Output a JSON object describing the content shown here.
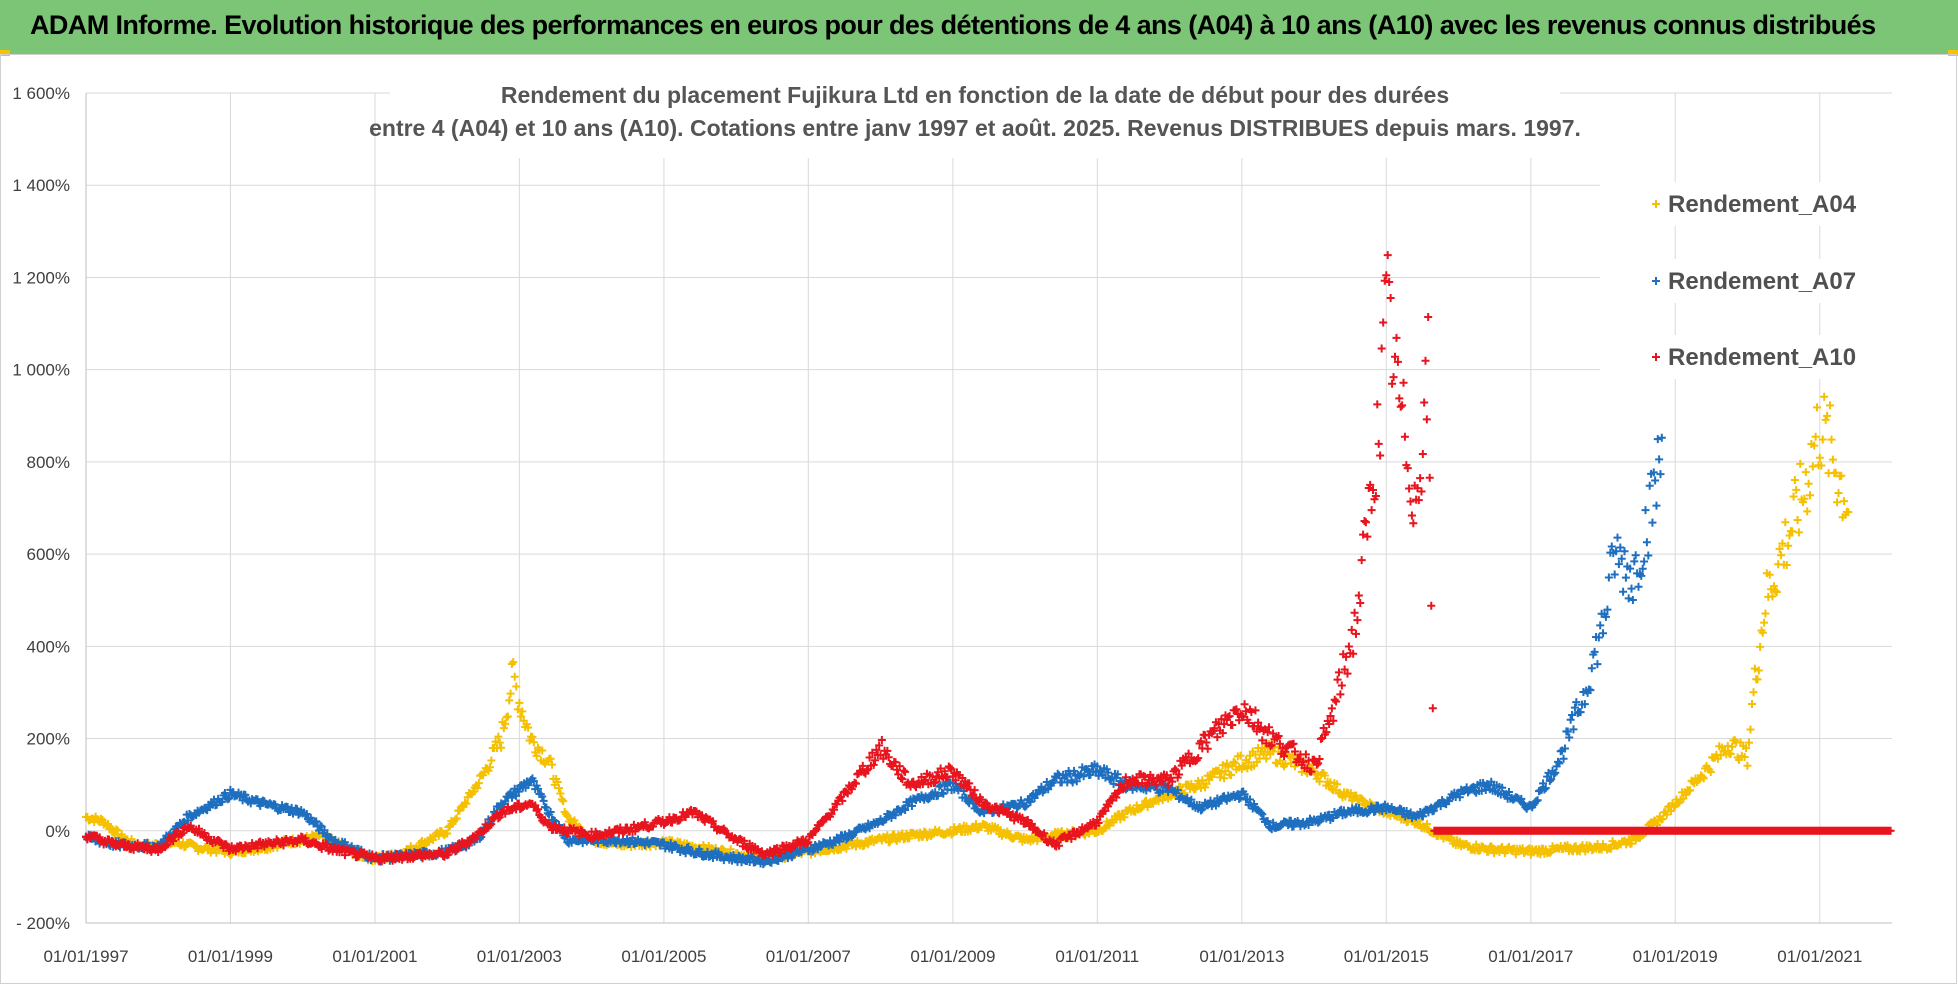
{
  "banner": {
    "title": "ADAM Informe. Evolution historique des performances en euros pour des détentions de 4 ans (A04) à 10 ans (A10) avec les revenus connus distribués",
    "background": "#7cc576"
  },
  "chart_data": {
    "type": "scatter",
    "title_lines": [
      "Rendement du placement Fujikura Ltd en fonction de la date de début pour des durées",
      "entre 4 (A04) et 10 ans (A10). Cotations entre janv 1997 et août. 2025. Revenus DISTRIBUES depuis mars. 1997."
    ],
    "xlabel": "",
    "ylabel": "",
    "x_range": [
      "1997-01-01",
      "2022-01-01"
    ],
    "ylim": [
      -200,
      1600
    ],
    "y_ticks": [
      -200,
      0,
      200,
      400,
      600,
      800,
      1000,
      1200,
      1400,
      1600
    ],
    "y_tick_labels": [
      "- 200%",
      "0%",
      "200%",
      "400%",
      "600%",
      "800%",
      "1 000%",
      "1 200%",
      "1 400%",
      "1 600%"
    ],
    "x_ticks": [
      "1997-01-01",
      "1999-01-01",
      "2001-01-01",
      "2003-01-01",
      "2005-01-01",
      "2007-01-01",
      "2009-01-01",
      "2011-01-01",
      "2013-01-01",
      "2015-01-01",
      "2017-01-01",
      "2019-01-01",
      "2021-01-01"
    ],
    "x_tick_labels": [
      "01/01/1997",
      "01/01/1999",
      "01/01/2001",
      "01/01/2003",
      "01/01/2005",
      "01/01/2007",
      "01/01/2009",
      "01/01/2011",
      "01/01/2013",
      "01/01/2015",
      "01/01/2017",
      "01/01/2019",
      "01/01/2021"
    ],
    "grid": "vertical and horizontal",
    "legend_position": "top-right",
    "marker": "+",
    "series": [
      {
        "name": "Rendement_A04",
        "color": "#f5c000",
        "points": [
          [
            "1997-01-01",
            30
          ],
          [
            "1997-04-01",
            20
          ],
          [
            "1997-07-01",
            -15
          ],
          [
            "1997-10-01",
            -35
          ],
          [
            "1998-01-01",
            -30
          ],
          [
            "1998-04-01",
            -25
          ],
          [
            "1998-07-01",
            -35
          ],
          [
            "1998-10-01",
            -40
          ],
          [
            "1999-01-01",
            -45
          ],
          [
            "1999-04-01",
            -40
          ],
          [
            "1999-07-01",
            -35
          ],
          [
            "1999-10-01",
            -25
          ],
          [
            "2000-01-01",
            -20
          ],
          [
            "2000-04-01",
            -10
          ],
          [
            "2000-07-01",
            -30
          ],
          [
            "2000-10-01",
            -50
          ],
          [
            "2001-01-01",
            -60
          ],
          [
            "2001-04-01",
            -55
          ],
          [
            "2001-07-01",
            -40
          ],
          [
            "2001-10-01",
            -20
          ],
          [
            "2002-01-01",
            0
          ],
          [
            "2002-04-01",
            60
          ],
          [
            "2002-07-01",
            120
          ],
          [
            "2002-10-01",
            200
          ],
          [
            "2002-12-01",
            340
          ],
          [
            "2003-01-01",
            280
          ],
          [
            "2003-03-01",
            200
          ],
          [
            "2003-06-01",
            150
          ],
          [
            "2003-09-01",
            30
          ],
          [
            "2004-01-01",
            -20
          ],
          [
            "2004-06-01",
            -30
          ],
          [
            "2005-01-01",
            -25
          ],
          [
            "2005-06-01",
            -35
          ],
          [
            "2006-01-01",
            -50
          ],
          [
            "2006-06-01",
            -60
          ],
          [
            "2007-01-01",
            -45
          ],
          [
            "2007-06-01",
            -35
          ],
          [
            "2008-01-01",
            -20
          ],
          [
            "2008-06-01",
            -10
          ],
          [
            "2009-01-01",
            0
          ],
          [
            "2009-06-01",
            10
          ],
          [
            "2010-01-01",
            -20
          ],
          [
            "2010-06-01",
            -10
          ],
          [
            "2011-01-01",
            0
          ],
          [
            "2011-06-01",
            40
          ],
          [
            "2012-01-01",
            80
          ],
          [
            "2012-06-01",
            100
          ],
          [
            "2013-01-01",
            150
          ],
          [
            "2013-06-01",
            170
          ],
          [
            "2014-01-01",
            130
          ],
          [
            "2014-06-01",
            80
          ],
          [
            "2015-01-01",
            40
          ],
          [
            "2015-06-01",
            20
          ],
          [
            "2016-01-01",
            -30
          ],
          [
            "2016-06-01",
            -40
          ],
          [
            "2017-01-01",
            -45
          ],
          [
            "2017-06-01",
            -40
          ],
          [
            "2018-01-01",
            -35
          ],
          [
            "2018-06-01",
            -20
          ],
          [
            "2018-10-01",
            20
          ],
          [
            "2019-01-01",
            60
          ],
          [
            "2019-06-01",
            130
          ],
          [
            "2019-10-01",
            190
          ],
          [
            "2020-01-01",
            160
          ],
          [
            "2020-02-01",
            300
          ],
          [
            "2020-04-01",
            500
          ],
          [
            "2020-08-01",
            650
          ],
          [
            "2020-10-01",
            720
          ],
          [
            "2021-01-01",
            880
          ],
          [
            "2021-03-01",
            820
          ],
          [
            "2021-06-01",
            700
          ]
        ]
      },
      {
        "name": "Rendement_A07",
        "color": "#1f6fc0",
        "points": [
          [
            "1997-01-01",
            -15
          ],
          [
            "1997-06-01",
            -30
          ],
          [
            "1998-01-01",
            -35
          ],
          [
            "1998-06-01",
            30
          ],
          [
            "1999-01-01",
            80
          ],
          [
            "1999-06-01",
            60
          ],
          [
            "2000-01-01",
            40
          ],
          [
            "2000-06-01",
            -20
          ],
          [
            "2001-01-01",
            -60
          ],
          [
            "2001-06-01",
            -55
          ],
          [
            "2002-01-01",
            -45
          ],
          [
            "2002-06-01",
            -20
          ],
          [
            "2002-10-01",
            60
          ],
          [
            "2003-03-01",
            110
          ],
          [
            "2003-06-01",
            40
          ],
          [
            "2003-09-01",
            -20
          ],
          [
            "2004-06-01",
            -20
          ],
          [
            "2005-01-01",
            -30
          ],
          [
            "2005-06-01",
            -45
          ],
          [
            "2006-01-01",
            -60
          ],
          [
            "2006-06-01",
            -65
          ],
          [
            "2007-01-01",
            -40
          ],
          [
            "2007-06-01",
            -20
          ],
          [
            "2008-01-01",
            20
          ],
          [
            "2008-06-01",
            60
          ],
          [
            "2009-01-01",
            100
          ],
          [
            "2009-06-01",
            40
          ],
          [
            "2010-01-01",
            60
          ],
          [
            "2010-06-01",
            110
          ],
          [
            "2011-01-01",
            130
          ],
          [
            "2011-06-01",
            100
          ],
          [
            "2012-01-01",
            90
          ],
          [
            "2012-06-01",
            50
          ],
          [
            "2013-01-01",
            80
          ],
          [
            "2013-06-01",
            10
          ],
          [
            "2014-01-01",
            20
          ],
          [
            "2014-06-01",
            40
          ],
          [
            "2015-01-01",
            50
          ],
          [
            "2015-06-01",
            30
          ],
          [
            "2016-01-01",
            80
          ],
          [
            "2016-06-01",
            100
          ],
          [
            "2017-01-01",
            50
          ],
          [
            "2017-06-01",
            160
          ],
          [
            "2017-10-01",
            300
          ],
          [
            "2018-01-01",
            450
          ],
          [
            "2018-03-01",
            600
          ],
          [
            "2018-06-01",
            550
          ],
          [
            "2018-09-01",
            700
          ],
          [
            "2018-11-01",
            840
          ]
        ]
      },
      {
        "name": "Rendement_A10",
        "color": "#e8141e",
        "points": [
          [
            "1997-01-01",
            -10
          ],
          [
            "1997-06-01",
            -30
          ],
          [
            "1998-01-01",
            -40
          ],
          [
            "1998-06-01",
            10
          ],
          [
            "1999-01-01",
            -40
          ],
          [
            "1999-06-01",
            -30
          ],
          [
            "2000-01-01",
            -20
          ],
          [
            "2000-06-01",
            -40
          ],
          [
            "2001-01-01",
            -60
          ],
          [
            "2001-06-01",
            -55
          ],
          [
            "2002-01-01",
            -50
          ],
          [
            "2002-06-01",
            -10
          ],
          [
            "2002-10-01",
            40
          ],
          [
            "2003-03-01",
            60
          ],
          [
            "2003-06-01",
            10
          ],
          [
            "2004-01-01",
            -10
          ],
          [
            "2004-06-01",
            0
          ],
          [
            "2005-01-01",
            20
          ],
          [
            "2005-06-01",
            40
          ],
          [
            "2006-01-01",
            -20
          ],
          [
            "2006-06-01",
            -50
          ],
          [
            "2007-01-01",
            -20
          ],
          [
            "2007-06-01",
            60
          ],
          [
            "2008-01-01",
            180
          ],
          [
            "2008-06-01",
            100
          ],
          [
            "2009-01-01",
            130
          ],
          [
            "2009-06-01",
            60
          ],
          [
            "2010-01-01",
            20
          ],
          [
            "2010-06-01",
            -30
          ],
          [
            "2011-01-01",
            20
          ],
          [
            "2011-06-01",
            110
          ],
          [
            "2012-01-01",
            110
          ],
          [
            "2012-06-01",
            180
          ],
          [
            "2013-01-01",
            270
          ],
          [
            "2013-06-01",
            200
          ],
          [
            "2014-01-01",
            140
          ],
          [
            "2014-04-01",
            250
          ],
          [
            "2014-08-01",
            450
          ],
          [
            "2014-12-01",
            900
          ],
          [
            "2015-01-01",
            1150
          ],
          [
            "2015-03-01",
            950
          ],
          [
            "2015-06-01",
            700
          ],
          [
            "2015-08-01",
            1000
          ],
          [
            "2015-09-01",
            0
          ],
          [
            "2016-01-01",
            0
          ],
          [
            "2017-01-01",
            0
          ],
          [
            "2018-01-01",
            0
          ],
          [
            "2019-01-01",
            0
          ],
          [
            "2020-01-01",
            0
          ],
          [
            "2021-01-01",
            0
          ],
          [
            "2022-01-01",
            0
          ]
        ]
      }
    ]
  }
}
